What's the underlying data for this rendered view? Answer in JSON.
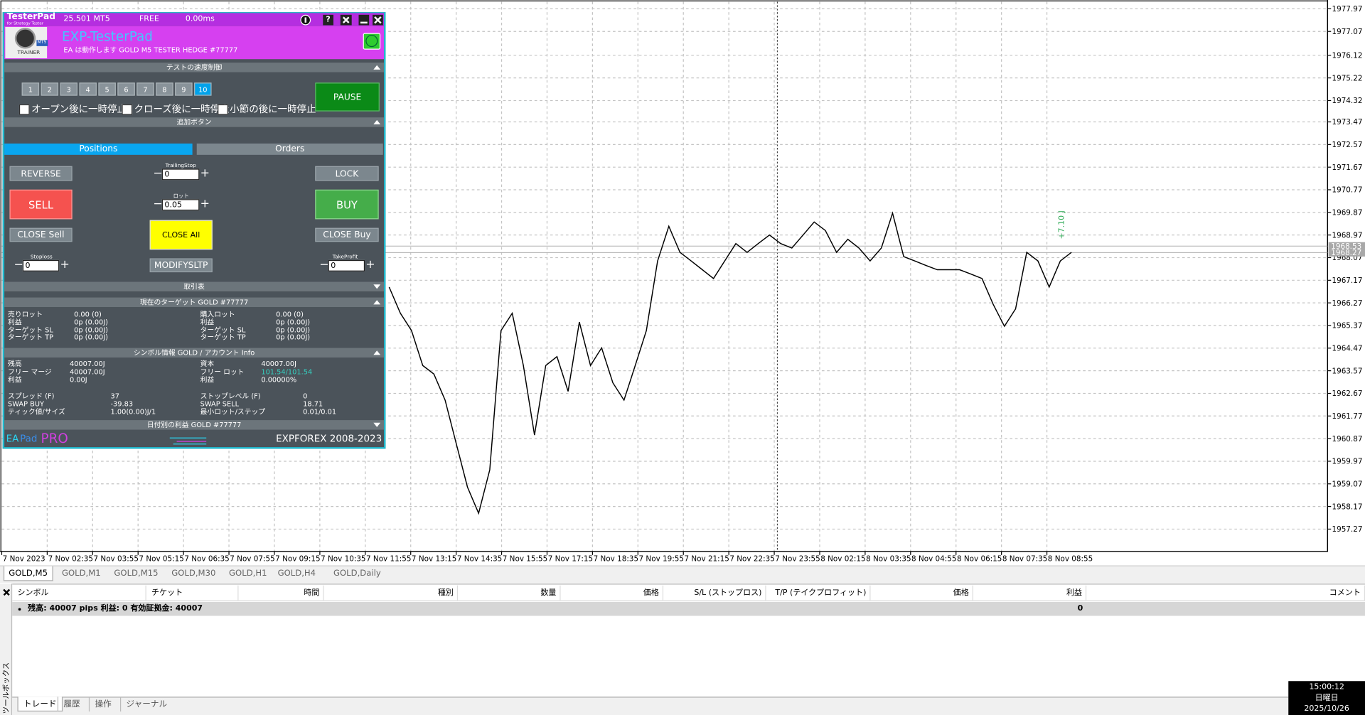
{
  "chart_data": {
    "type": "line",
    "values": [
      1966.9,
      1965.86,
      1965.17,
      1963.78,
      1963.44,
      1962.4,
      1960.67,
      1958.94,
      1957.9,
      1959.63,
      1965.17,
      1965.86,
      1963.78,
      1961.01,
      1963.78,
      1964.13,
      1962.75,
      1965.51,
      1963.78,
      1964.48,
      1963.09,
      1962.4,
      1963.78,
      1965.17,
      1967.94,
      1969.32,
      1968.28,
      1967.94,
      1967.59,
      1967.24,
      1967.94,
      1968.63,
      1968.28,
      1968.63,
      1968.97,
      1968.63,
      1968.45,
      1968.97,
      1969.49,
      1969.15,
      1968.28,
      1968.8,
      1968.45,
      1967.94,
      1968.45,
      1969.84,
      1968.11,
      1967.94,
      1967.76,
      1967.59,
      1967.59,
      1967.59,
      1967.42,
      1967.24,
      1966.21,
      1965.34,
      1966.03,
      1968.28,
      1967.94,
      1966.9,
      1967.94,
      1968.28
    ],
    "color": "#000000",
    "ylim": [
      1956.38,
      1978.32
    ],
    "yticks": [
      1977.97,
      1977.07,
      1976.12,
      1975.22,
      1974.32,
      1973.47,
      1972.57,
      1971.67,
      1970.77,
      1969.87,
      1968.97,
      1968.07,
      1967.17,
      1966.27,
      1965.37,
      1964.47,
      1963.57,
      1962.67,
      1961.77,
      1960.87,
      1959.97,
      1959.07,
      1958.17,
      1957.27
    ],
    "xtick_labels": [
      "7 Nov 2023",
      "7 Nov 02:35",
      "7 Nov 03:55",
      "7 Nov 05:15",
      "7 Nov 06:35",
      "7 Nov 07:55",
      "7 Nov 09:15",
      "7 Nov 10:35",
      "7 Nov 11:55",
      "7 Nov 13:15",
      "7 Nov 14:35",
      "7 Nov 15:55",
      "7 Nov 17:15",
      "7 Nov 18:35",
      "7 Nov 19:55",
      "7 Nov 21:15",
      "7 Nov 22:35",
      "7 Nov 23:55",
      "8 Nov 02:15",
      "8 Nov 03:35",
      "8 Nov 04:55",
      "8 Nov 06:15",
      "8 Nov 07:35",
      "8 Nov 08:55"
    ],
    "grid": true,
    "price_labels": [
      1968.53,
      1968.27
    ],
    "annotation": "+7.10 J"
  },
  "panel": {
    "titlebar": {
      "name": "TesterPad",
      "subtitle": "for Strategy Tester",
      "version": "25.501 MT5",
      "license": "FREE",
      "ping": "0.00ms",
      "help": "?"
    },
    "logo": {
      "badge": "TRAINER",
      "mt5": "MT5"
    },
    "header": {
      "title": "EXP-TesterPad",
      "status": "EA は動作します GOLD M5 TESTER HEDGE  #77777"
    },
    "speed": {
      "title": "テストの速度制御",
      "buttons": [
        "1",
        "2",
        "3",
        "4",
        "5",
        "6",
        "7",
        "8",
        "9",
        "10"
      ],
      "pause": "PAUSE",
      "checks": [
        "オープン後に一時停止",
        "クローズ後に一時停止",
        "小節の後に一時停止"
      ]
    },
    "extra": "追加ボタン",
    "tabs": [
      "Positions",
      "Orders"
    ],
    "buttons": {
      "reverse": "REVERSE",
      "lock": "LOCK",
      "sell": "SELL",
      "buy": "BUY",
      "close_sell": "CLOSE Sell",
      "close_all": "CLOSE All",
      "close_buy": "CLOSE Buy",
      "modify": "MODIFYSLTP"
    },
    "inputs": {
      "trailing": {
        "label": "TrailingStop",
        "value": "0"
      },
      "lot": {
        "label": "ロット",
        "value": "0.05"
      },
      "sl": {
        "label": "Stoploss",
        "value": "0"
      },
      "tp": {
        "label": "TakeProfit",
        "value": "0"
      },
      "minus": "−",
      "plus": "+"
    },
    "sections": {
      "trade_table": "取引表",
      "target": "現在のターゲット GOLD  #77777",
      "info": "シンボル情報 GOLD / アカウント Info",
      "daily": "日付別の利益 GOLD  #77777"
    },
    "target": {
      "left": [
        [
          "売りロット",
          "0.00 (0)"
        ],
        [
          "利益",
          "0p (0.00J)"
        ],
        [
          "ターゲット SL",
          "0p (0.00J)"
        ],
        [
          "ターゲット TP",
          "0p (0.00J)"
        ]
      ],
      "right": [
        [
          "購入ロット",
          "0.00 (0)"
        ],
        [
          "利益",
          "0p (0.00J)"
        ],
        [
          "ターゲット SL",
          "0p (0.00J)"
        ],
        [
          "ターゲット TP",
          "0p (0.00J)"
        ]
      ]
    },
    "account": {
      "left": [
        [
          "残高",
          "40007.00J"
        ],
        [
          "フリー マージ",
          "40007.00J"
        ],
        [
          "利益",
          "0.00J"
        ]
      ],
      "right": [
        [
          "資本",
          "40007.00J"
        ],
        [
          "フリー ロット",
          "101.54/101.54"
        ],
        [
          "利益",
          "0.00000%"
        ]
      ]
    },
    "symbol": {
      "left": [
        [
          "スプレッド (F)",
          "37"
        ],
        [
          "SWAP BUY",
          "-39.83"
        ],
        [
          "ティック値/サイズ",
          "1.00(0.00)J/1"
        ]
      ],
      "right": [
        [
          "ストップレベル (F)",
          "0"
        ],
        [
          "SWAP SELL",
          "18.71"
        ],
        [
          "最小ロット/ステップ",
          "0.01/0.01"
        ]
      ]
    },
    "footer": {
      "ea": "EA",
      "pad": "Pad",
      "pro": "PRO",
      "copyright": "EXPFOREX 2008-2023"
    }
  },
  "chart_tabs": [
    "GOLD,M5",
    "GOLD,M1",
    "GOLD,M15",
    "GOLD,M30",
    "GOLD,H1",
    "GOLD,H4",
    "GOLD,Daily"
  ],
  "toolbox": {
    "side": "ツールボックス",
    "columns": [
      "シンボル",
      "チケット",
      "時間",
      "種別",
      "数量",
      "価格",
      "S/L (ストップロス)",
      "T/P (テイクプロフィット)",
      "価格",
      "利益",
      "コメント"
    ],
    "summary": "残高: 40007 pips  利益: 0  有効証拠金: 40007",
    "profit": "0",
    "tabs": [
      "トレード",
      "履歴",
      "操作",
      "ジャーナル"
    ]
  },
  "clock": {
    "time": "15:00:12",
    "day": "日曜日",
    "date": "2025/10/26"
  }
}
